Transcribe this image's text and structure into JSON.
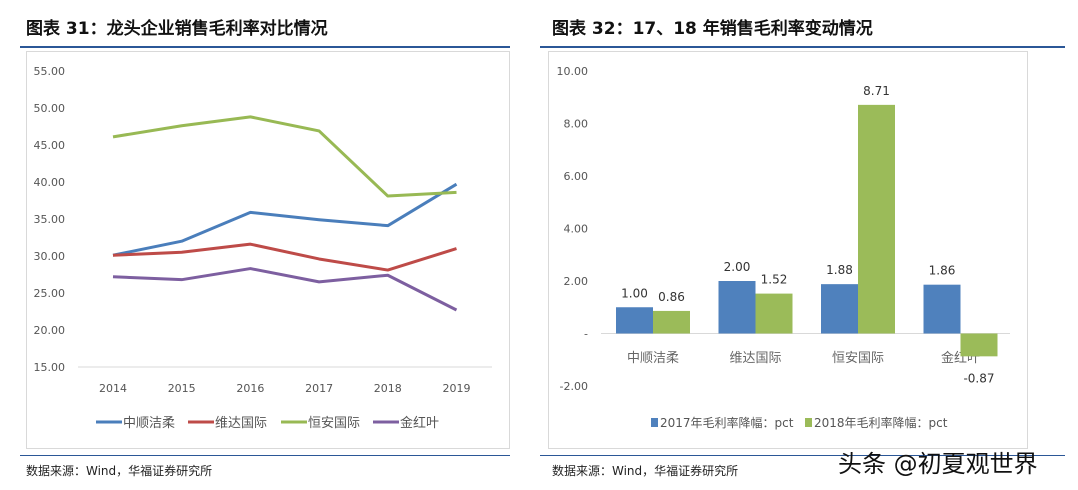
{
  "left": {
    "title": "图表 31：龙头企业销售毛利率对比情况",
    "source": "数据来源：Wind，华福证券研究所"
  },
  "right": {
    "title": "图表 32：17、18 年销售毛利率变动情况",
    "source": "数据来源：Wind，华福证券研究所"
  },
  "watermark": "头条 @初夏观世界",
  "chart_data": [
    {
      "type": "line",
      "categories": [
        "2014",
        "2015",
        "2016",
        "2017",
        "2018",
        "2019"
      ],
      "ylim": [
        15,
        55
      ],
      "yticks": [
        "15.00",
        "20.00",
        "25.00",
        "30.00",
        "35.00",
        "40.00",
        "45.00",
        "50.00",
        "55.00"
      ],
      "grid": false,
      "legend": "bottom",
      "series": [
        {
          "name": "中顺洁柔",
          "color": "#4a7ebb",
          "values": [
            30.1,
            32.0,
            35.9,
            34.9,
            34.1,
            39.7
          ]
        },
        {
          "name": "维达国际",
          "color": "#be4b48",
          "values": [
            30.1,
            30.5,
            31.6,
            29.6,
            28.1,
            31.0
          ]
        },
        {
          "name": "恒安国际",
          "color": "#98b954",
          "values": [
            46.1,
            47.6,
            48.8,
            46.9,
            38.1,
            38.6
          ]
        },
        {
          "name": "金红叶",
          "color": "#7d5fa0",
          "values": [
            27.2,
            26.8,
            28.3,
            26.5,
            27.4,
            22.7
          ]
        }
      ]
    },
    {
      "type": "bar",
      "categories": [
        "中顺洁柔",
        "维达国际",
        "恒安国际",
        "金红叶"
      ],
      "ylim": [
        -2,
        10
      ],
      "yticks": [
        "-2.00",
        "-",
        "2.00",
        "4.00",
        "6.00",
        "8.00",
        "10.00"
      ],
      "grid": false,
      "legend": "bottom",
      "series": [
        {
          "name": "2017年毛利率降幅：pct",
          "color": "#4f81bd",
          "values": [
            1.0,
            2.0,
            1.88,
            1.86
          ],
          "labels": [
            "1.00",
            "2.00",
            "1.88",
            "1.86"
          ]
        },
        {
          "name": "2018年毛利率降幅：pct",
          "color": "#9bbb59",
          "values": [
            0.86,
            1.52,
            8.71,
            -0.87
          ],
          "labels": [
            "0.86",
            "1.52",
            "8.71",
            "-0.87"
          ]
        }
      ]
    }
  ]
}
